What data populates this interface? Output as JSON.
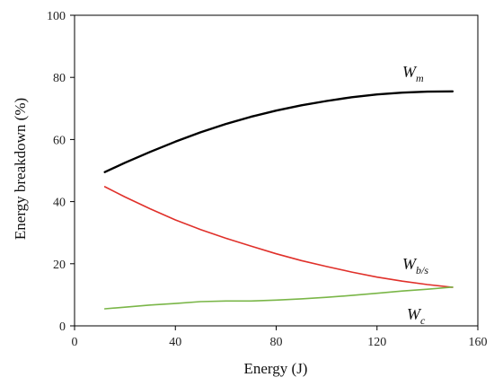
{
  "chart_data": {
    "type": "line",
    "xlabel": "Energy (J)",
    "ylabel": "Energy breakdown (%)",
    "xlim": [
      0,
      160
    ],
    "ylim": [
      0,
      100
    ],
    "xticks": [
      0,
      40,
      80,
      120,
      160
    ],
    "yticks": [
      0,
      20,
      40,
      60,
      80,
      100
    ],
    "grid": false,
    "series": [
      {
        "name": "Wm",
        "label_main": "W",
        "label_sub": "m",
        "color": "#000000",
        "x": [
          12,
          20,
          30,
          40,
          50,
          60,
          70,
          80,
          90,
          100,
          110,
          120,
          130,
          140,
          150
        ],
        "y": [
          49.5,
          52.5,
          56,
          59.3,
          62.3,
          65,
          67.3,
          69.3,
          71,
          72.4,
          73.6,
          74.5,
          75.1,
          75.4,
          75.5
        ]
      },
      {
        "name": "Wb/s",
        "label_main": "W",
        "label_sub": "b/s",
        "color": "#e0302a",
        "x": [
          12,
          20,
          30,
          40,
          50,
          60,
          70,
          80,
          90,
          100,
          110,
          120,
          130,
          140,
          150
        ],
        "y": [
          44.8,
          41.5,
          37.7,
          34.1,
          31,
          28.2,
          25.7,
          23.2,
          21,
          19.1,
          17.3,
          15.7,
          14.4,
          13.3,
          12.4
        ]
      },
      {
        "name": "Wc",
        "label_main": "W",
        "label_sub": "c",
        "color": "#7ab648",
        "x": [
          12,
          20,
          30,
          40,
          50,
          60,
          70,
          80,
          90,
          100,
          110,
          120,
          130,
          140,
          150
        ],
        "y": [
          5.5,
          6,
          6.7,
          7.2,
          7.8,
          8,
          8,
          8.3,
          8.7,
          9.2,
          9.8,
          10.5,
          11.2,
          11.8,
          12.5
        ]
      }
    ]
  }
}
